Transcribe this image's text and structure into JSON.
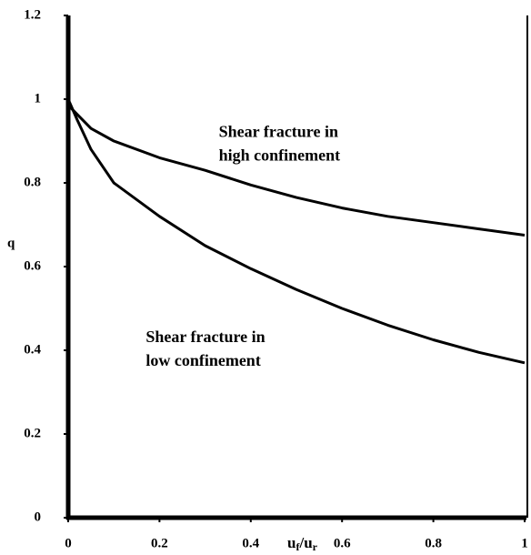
{
  "chart_data": {
    "type": "line",
    "x_label_parts": [
      "u",
      "f",
      "/u",
      "r"
    ],
    "y_label": "q",
    "annotations": [
      {
        "lines": [
          "Shear fracture in",
          "high confinement"
        ],
        "x": 0.33,
        "y": 0.89
      },
      {
        "lines": [
          "Shear fracture in",
          "low confinement"
        ],
        "x": 0.17,
        "y": 0.4
      }
    ],
    "series": [
      {
        "name": "high confinement",
        "color": "#000000",
        "x": [
          0,
          0.005,
          0.05,
          0.1,
          0.2,
          0.3,
          0.4,
          0.5,
          0.6,
          0.7,
          0.8,
          0.9,
          1
        ],
        "values": [
          1.0,
          0.98,
          0.93,
          0.9,
          0.86,
          0.83,
          0.795,
          0.765,
          0.74,
          0.72,
          0.705,
          0.69,
          0.675
        ]
      },
      {
        "name": "low confinement",
        "color": "#000000",
        "x": [
          0,
          0.02,
          0.05,
          0.1,
          0.2,
          0.3,
          0.4,
          0.5,
          0.6,
          0.7,
          0.8,
          0.9,
          1
        ],
        "values": [
          1.0,
          0.95,
          0.88,
          0.8,
          0.72,
          0.65,
          0.595,
          0.545,
          0.5,
          0.46,
          0.425,
          0.395,
          0.37
        ]
      }
    ],
    "xlim": [
      0,
      1
    ],
    "xticks": [
      0,
      0.2,
      0.4,
      0.6,
      0.8,
      1
    ],
    "ylim": [
      0,
      1.2
    ],
    "yticks": [
      0,
      0.2,
      0.4,
      0.6,
      0.8,
      1,
      1.2
    ]
  }
}
